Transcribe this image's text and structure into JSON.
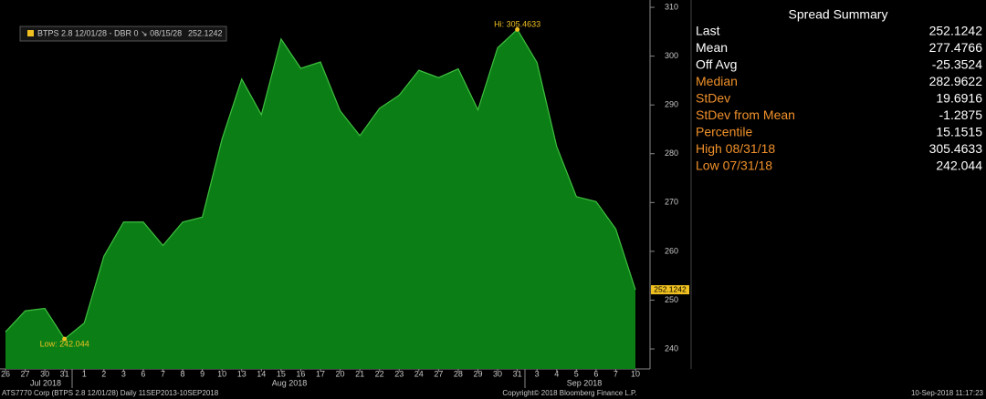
{
  "chart_data": {
    "type": "area",
    "categories": [
      "26",
      "27",
      "30",
      "31",
      "1",
      "2",
      "3",
      "6",
      "7",
      "8",
      "9",
      "10",
      "13",
      "14",
      "15",
      "16",
      "17",
      "20",
      "21",
      "22",
      "23",
      "24",
      "27",
      "28",
      "29",
      "30",
      "31",
      "3",
      "4",
      "5",
      "6",
      "7",
      "10"
    ],
    "months": [
      "Jul 2018",
      "Aug 2018",
      "Sep 2018"
    ],
    "series": [
      {
        "name": "BTPS 2.8 12/01/28 - DBR 0 ↘ 08/15/28",
        "color": "#0b7f16",
        "line_color": "#3fbf3f",
        "values": [
          243.5,
          247.8,
          248.3,
          242.044,
          245.3,
          259,
          266,
          266,
          261.2,
          266,
          267,
          283,
          295.3,
          288,
          303.5,
          297.5,
          298.8,
          288.8,
          283.7,
          289.3,
          292,
          297.1,
          295.6,
          297.4,
          289,
          301.7,
          305.4633,
          298.7,
          281.5,
          271.2,
          270.2,
          264.6,
          252.1242
        ]
      }
    ],
    "annotations": [
      "Hi: 305.4633",
      "Low: 242.044"
    ],
    "ylim": [
      235.9,
      311.5
    ],
    "yticks": [
      240,
      250,
      260,
      270,
      280,
      290,
      300,
      310
    ],
    "grid": false
  },
  "summary": {
    "title": "Spread Summary",
    "rows": [
      {
        "label": "Last",
        "value": "252.1242"
      },
      {
        "label": "Mean",
        "value": "277.4766"
      },
      {
        "label": "Off Avg",
        "value": "-25.3524"
      },
      {
        "label": "Median",
        "value": "282.9622"
      },
      {
        "label": "StDev",
        "value": "19.6916"
      },
      {
        "label": "StDev from Mean",
        "value": "-1.2875"
      },
      {
        "label": "Percentile",
        "value": "15.1515"
      },
      {
        "label": "High 08/31/18",
        "value": "305.4633"
      },
      {
        "label": "Low 07/31/18",
        "value": "242.044"
      }
    ]
  },
  "footer": {
    "left": "ATS7770 Corp (BTPS 2.8 12/01/28)  Daily 11SEP2013-10SEP2018",
    "center": "Copyright© 2018 Bloomberg Finance L.P.",
    "right": "10-Sep-2018 11:17:23"
  }
}
